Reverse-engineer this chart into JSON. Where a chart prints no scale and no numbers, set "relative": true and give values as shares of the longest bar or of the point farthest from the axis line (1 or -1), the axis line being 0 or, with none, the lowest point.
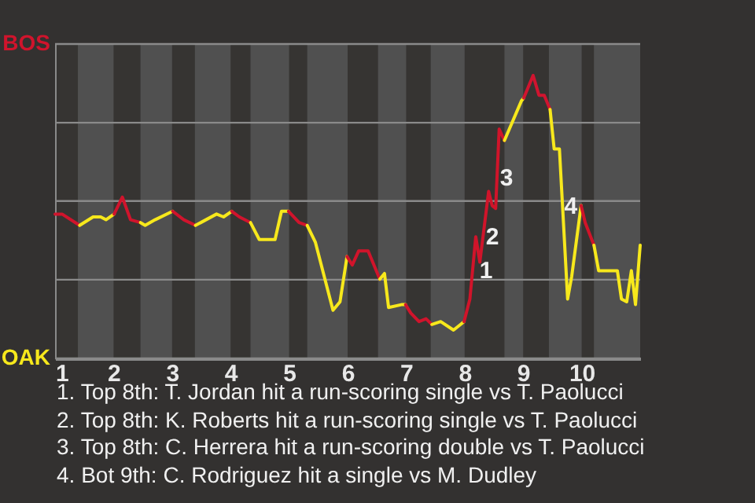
{
  "chart_data": {
    "type": "line",
    "relative": true,
    "series": [
      {
        "color": "#d0142c",
        "x": [
          1.0,
          1.12,
          1.42
        ],
        "values": [
          0.51,
          0.51,
          0.47
        ]
      },
      {
        "color": "#f7e81c",
        "x": [
          1.42,
          1.65,
          1.78,
          1.87,
          2.01
        ],
        "values": [
          0.47,
          0.5,
          0.5,
          0.49,
          0.51
        ]
      },
      {
        "color": "#d0142c",
        "x": [
          2.01,
          2.15,
          2.29,
          2.46
        ],
        "values": [
          0.51,
          0.57,
          0.49,
          0.48
        ]
      },
      {
        "color": "#f7e81c",
        "x": [
          2.46,
          2.54,
          2.71,
          3.01
        ],
        "values": [
          0.48,
          0.47,
          0.49,
          0.52
        ]
      },
      {
        "color": "#d0142d",
        "x": [
          3.01,
          3.2,
          3.4
        ],
        "values": [
          0.52,
          0.49,
          0.47
        ]
      },
      {
        "color": "#f7e81c",
        "x": [
          3.4,
          3.76,
          3.88,
          4.02
        ],
        "values": [
          0.47,
          0.51,
          0.5,
          0.52
        ]
      },
      {
        "color": "#d0142e",
        "x": [
          4.02,
          4.15,
          4.34
        ],
        "values": [
          0.52,
          0.5,
          0.48
        ]
      },
      {
        "color": "#f7e81c",
        "x": [
          4.34,
          4.49,
          4.76,
          4.87,
          4.99
        ],
        "values": [
          0.48,
          0.42,
          0.42,
          0.52,
          0.52
        ]
      },
      {
        "color": "#d0142c",
        "x": [
          4.99,
          5.17,
          5.31
        ],
        "values": [
          0.52,
          0.48,
          0.47
        ]
      },
      {
        "color": "#f7e81c",
        "x": [
          5.31,
          5.45,
          5.75,
          5.87,
          5.99
        ],
        "values": [
          0.47,
          0.41,
          0.17,
          0.2,
          0.36
        ]
      },
      {
        "color": "#d0142b",
        "x": [
          5.99,
          6.08,
          6.19,
          6.35,
          6.55
        ],
        "values": [
          0.36,
          0.33,
          0.38,
          0.38,
          0.28
        ]
      },
      {
        "color": "#f7e81c",
        "x": [
          6.55,
          6.63,
          6.7,
          6.92,
          6.99
        ],
        "values": [
          0.28,
          0.3,
          0.18,
          0.19,
          0.19
        ]
      },
      {
        "color": "#d0142c",
        "x": [
          6.99,
          7.08,
          7.22,
          7.34,
          7.44
        ],
        "values": [
          0.19,
          0.16,
          0.13,
          0.14,
          0.12
        ]
      },
      {
        "color": "#f7e81c",
        "x": [
          7.44,
          7.59,
          7.81,
          7.99
        ],
        "values": [
          0.12,
          0.13,
          0.1,
          0.13
        ]
      },
      {
        "color": "#d0142a",
        "x": [
          7.99,
          8.09,
          8.19,
          8.26,
          8.41,
          8.47,
          8.53,
          8.59,
          8.68
        ],
        "values": [
          0.13,
          0.21,
          0.43,
          0.34,
          0.59,
          0.54,
          0.53,
          0.81,
          0.77
        ]
      },
      {
        "color": "#f7e81c",
        "x": [
          8.68,
          8.97,
          9.01
        ],
        "values": [
          0.77,
          0.91,
          0.92
        ]
      },
      {
        "color": "#d0142f",
        "x": [
          9.01,
          9.17,
          9.27,
          9.36,
          9.46
        ],
        "values": [
          0.92,
          1,
          0.93,
          0.93,
          0.88
        ]
      },
      {
        "color": "#f7e81c",
        "x": [
          9.46,
          9.53,
          9.62,
          9.76,
          9.83,
          9.99
        ],
        "values": [
          0.88,
          0.74,
          0.74,
          0.21,
          0.29,
          0.54
        ]
      },
      {
        "color": "#d01429",
        "x": [
          9.99,
          10.06,
          10.21
        ],
        "values": [
          0.54,
          0.48,
          0.4
        ]
      },
      {
        "color": "#f7e81c",
        "x": [
          10.21,
          10.29,
          10.61,
          10.68,
          10.77,
          10.85,
          10.92,
          11.0
        ],
        "values": [
          0.4,
          0.31,
          0.31,
          0.21,
          0.2,
          0.31,
          0.19,
          0.4
        ]
      }
    ],
    "xlim": [
      1,
      11
    ],
    "xticks": [
      1,
      2,
      3,
      4,
      5,
      6,
      7,
      8,
      9,
      10
    ],
    "ref_lines": [
      {
        "axis": "y",
        "value": 0,
        "label": "OAK",
        "color": "#8a8a8a"
      },
      {
        "axis": "y",
        "value": 0.278,
        "color": "#8a8a8a"
      },
      {
        "axis": "y",
        "value": 0.556,
        "color": "#8a8a8a"
      },
      {
        "axis": "y",
        "value": 0.833,
        "color": "#8a8a8a"
      },
      {
        "axis": "y",
        "value": 1.111,
        "label": "BOS",
        "color": "#8a8a8a"
      }
    ],
    "bands": [
      {
        "axis": "x",
        "from": 1.39,
        "to": 2.0,
        "color": "#505050"
      },
      {
        "axis": "x",
        "from": 2.46,
        "to": 3.0,
        "color": "#505050"
      },
      {
        "axis": "x",
        "from": 3.39,
        "to": 4.0,
        "color": "#505050"
      },
      {
        "axis": "x",
        "from": 4.34,
        "to": 5.0,
        "color": "#505050"
      },
      {
        "axis": "x",
        "from": 5.31,
        "to": 6.0,
        "color": "#505050"
      },
      {
        "axis": "x",
        "from": 6.52,
        "to": 7.0,
        "color": "#505050"
      },
      {
        "axis": "x",
        "from": 7.42,
        "to": 8.0,
        "color": "#505050"
      },
      {
        "axis": "x",
        "from": 8.68,
        "to": 9.0,
        "color": "#505050"
      },
      {
        "axis": "x",
        "from": 9.44,
        "to": 10.0,
        "color": "#505050"
      },
      {
        "axis": "x",
        "from": 10.21,
        "to": 11.0,
        "color": "#505050"
      }
    ],
    "annotations": [
      {
        "text": "1",
        "x": 8.2,
        "y": 0.31
      },
      {
        "text": "2",
        "x": 8.31,
        "y": 0.43
      },
      {
        "text": "3",
        "x": 8.55,
        "y": 0.64
      },
      {
        "text": "4",
        "x": 9.65,
        "y": 0.54
      },
      "1. Top 8th: T. Jordan hit a run-scoring single vs T. Paolucci",
      "2. Top 8th: K. Roberts hit a run-scoring single vs T. Paolucci",
      "3. Top 8th: C. Herrera hit a run-scoring double vs T. Paolucci",
      "4. Bot 9th: C. Rodriguez hit a single vs M. Dudley"
    ]
  }
}
